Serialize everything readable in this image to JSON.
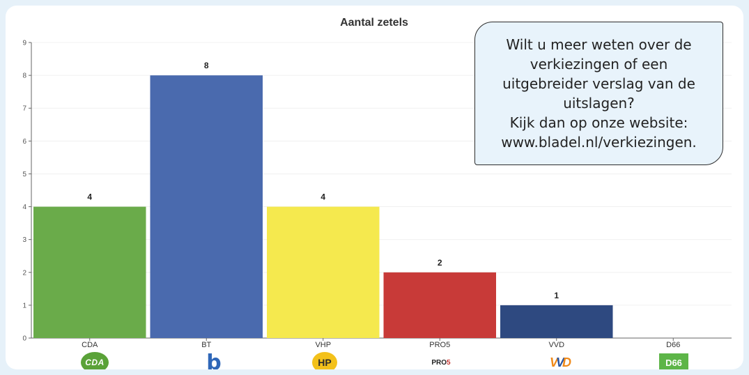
{
  "chart_data": {
    "type": "bar",
    "title": "Aantal zetels",
    "xlabel": "",
    "ylabel": "",
    "categories": [
      "CDA",
      "BT",
      "VHP",
      "PRO5",
      "VVD",
      "D66"
    ],
    "values": [
      4,
      8,
      4,
      2,
      1,
      0
    ],
    "value_labels": [
      "4",
      "8",
      "4",
      "2",
      "1",
      ""
    ],
    "bar_colors": [
      "#6aab4a",
      "#4a6aae",
      "#f5e94e",
      "#c83a38",
      "#2e4980",
      "#ffffff"
    ],
    "ylim": [
      0,
      9
    ],
    "yticks": [
      0,
      1,
      2,
      3,
      4,
      5,
      6,
      7,
      8,
      9
    ],
    "grid": true,
    "legend": "none"
  },
  "info_box": {
    "lines": [
      "Wilt u meer weten over de",
      "verkiezingen of een",
      "uitgebreider verslag van de",
      "uitslagen?",
      "Kijk dan op onze website:",
      "www.bladel.nl/verkiezingen."
    ]
  },
  "party_logos": {
    "cda": {
      "text": "CDA",
      "color": "#5aa238",
      "icon": "cda-logo-icon"
    },
    "bt": {
      "text": "b",
      "color": "#2f67b8",
      "icon": "bt-logo-icon"
    },
    "vhp": {
      "text": "HP",
      "color": "#f3c11b",
      "icon": "vhp-logo-icon"
    },
    "pro5": {
      "text": "PRO5",
      "color": "#c8332f",
      "icon": "pro5-logo-icon"
    },
    "vvd": {
      "text": "VVD",
      "color": "#f08a1a",
      "icon": "vvd-logo-icon"
    },
    "d66": {
      "text": "D66",
      "color": "#5db548",
      "icon": "d66-logo-icon"
    }
  }
}
